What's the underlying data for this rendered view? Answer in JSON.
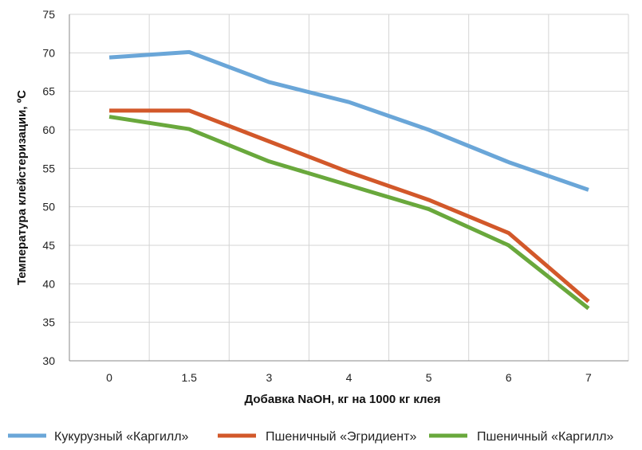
{
  "chart_data": {
    "type": "line",
    "title": "",
    "xlabel": "Добавка NaOH, кг на 1000 кг клея",
    "ylabel": "Температура клейстеризации, ºС",
    "categories": [
      "0",
      "1.5",
      "3",
      "4",
      "5",
      "6",
      "7"
    ],
    "ylim": [
      30,
      75
    ],
    "yticks": [
      30,
      35,
      40,
      45,
      50,
      55,
      60,
      65,
      70,
      75
    ],
    "grid": true,
    "legend_position": "bottom",
    "series": [
      {
        "name": "Кукурузный «Каргилл»",
        "color": "#6aa6d8",
        "values": [
          69.4,
          70.1,
          66.2,
          63.6,
          60.0,
          55.8,
          52.2
        ]
      },
      {
        "name": "Пшеничный «Эгридиент»",
        "color": "#d2582a",
        "values": [
          62.5,
          62.5,
          58.5,
          54.5,
          50.9,
          46.6,
          37.7
        ]
      },
      {
        "name": "Пшеничный «Каргилл»",
        "color": "#69a83c",
        "values": [
          61.7,
          60.1,
          55.9,
          52.8,
          49.7,
          45.0,
          36.8
        ]
      }
    ]
  }
}
